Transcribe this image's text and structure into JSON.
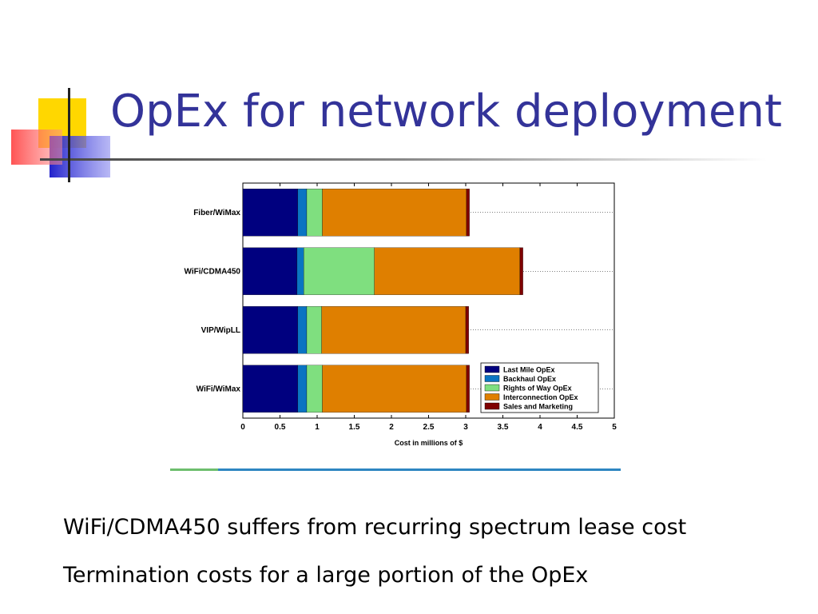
{
  "slide": {
    "title": "OpEx for network deployment",
    "bullets": [
      "WiFi/CDMA450 suffers from recurring spectrum lease cost",
      "Termination costs for a large portion of the OpEx"
    ]
  },
  "colors": {
    "title": "#333399",
    "deco_yellow": "#FFD700",
    "deco_red": "#FF3B3B",
    "deco_blue": "#3333CC"
  },
  "chart_data": {
    "type": "bar",
    "orientation": "horizontal",
    "stacked": true,
    "categories": [
      "Fiber/WiMax",
      "WiFi/CDMA450",
      "VIP/WipLL",
      "WiFi/WiMax"
    ],
    "series": [
      {
        "name": "Last Mile OpEx",
        "color": "#00007F",
        "values": [
          0.74,
          0.73,
          0.74,
          0.74
        ]
      },
      {
        "name": "Backhaul OpEx",
        "color": "#0A74C2",
        "values": [
          0.12,
          0.09,
          0.12,
          0.12
        ]
      },
      {
        "name": "Rights of Way OpEx",
        "color": "#7FDF7F",
        "values": [
          0.21,
          0.95,
          0.2,
          0.21
        ]
      },
      {
        "name": "Interconnection OpEx",
        "color": "#DF7F00",
        "values": [
          1.94,
          1.96,
          1.94,
          1.94
        ]
      },
      {
        "name": "Sales and Marketing",
        "color": "#7F0000",
        "values": [
          0.04,
          0.04,
          0.04,
          0.04
        ]
      }
    ],
    "xlabel": "Cost in millions of $",
    "xlim": [
      0,
      5
    ],
    "xticks": [
      "0",
      "0.5",
      "1",
      "1.5",
      "2",
      "2.5",
      "3",
      "3.5",
      "4",
      "4.5",
      "5"
    ],
    "grid": "dotted horizontal at bar centers",
    "legend": "bottom-right"
  }
}
